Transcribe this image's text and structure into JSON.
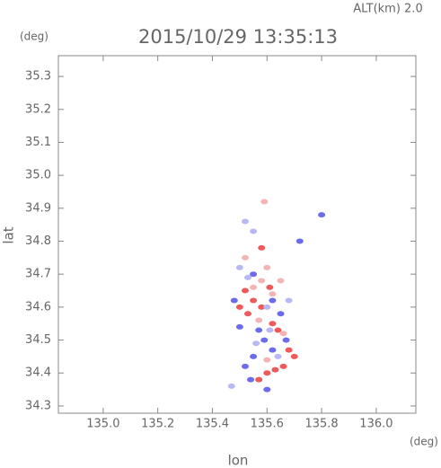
{
  "chart_data": {
    "type": "scatter",
    "title": "2015/10/29 13:35:13",
    "subtitle": "ALT(km) 2.0",
    "y_unit": "(deg)",
    "x_unit": "(deg)",
    "xlabel": "lon",
    "ylabel": "lat",
    "xlim": [
      134.836,
      136.145
    ],
    "ylim": [
      34.278,
      35.363
    ],
    "xticks": [
      {
        "value": 135.0,
        "label": "135.0"
      },
      135.2,
      135.4,
      135.6,
      135.8,
      {
        "value": 136.0,
        "label": "136.0"
      }
    ],
    "yticks": [
      34.3,
      34.4,
      34.5,
      34.6,
      34.7,
      34.8,
      34.9,
      {
        "value": 35.0,
        "label": "35.0"
      },
      35.1,
      35.2,
      35.3
    ],
    "series": [
      {
        "color": "#ee5a5a",
        "x": [
          135.55,
          135.58,
          135.53,
          135.62,
          135.68,
          135.66,
          135.6,
          135.57,
          135.52,
          135.61,
          135.58,
          135.64,
          135.5,
          135.7,
          135.63
        ],
        "y": [
          34.62,
          34.6,
          34.58,
          34.55,
          34.47,
          34.42,
          34.4,
          34.38,
          34.65,
          34.66,
          34.78,
          34.53,
          34.6,
          34.45,
          34.41
        ]
      },
      {
        "color": "#6b6bee",
        "x": [
          135.59,
          135.55,
          135.52,
          135.62,
          135.57,
          135.65,
          135.5,
          135.6,
          135.72,
          135.8,
          135.55,
          135.48,
          135.67,
          135.54,
          135.62
        ],
        "y": [
          34.5,
          34.45,
          34.42,
          34.47,
          34.53,
          34.58,
          34.54,
          34.35,
          34.8,
          34.88,
          34.7,
          34.62,
          34.5,
          34.38,
          34.62
        ]
      },
      {
        "color": "#f4b4b4",
        "x": [
          135.58,
          135.55,
          135.62,
          135.6,
          135.52,
          135.65,
          135.57,
          135.6,
          135.59,
          135.66
        ],
        "y": [
          34.68,
          34.66,
          34.64,
          34.72,
          34.75,
          34.68,
          34.56,
          34.44,
          34.92,
          34.52
        ]
      },
      {
        "color": "#b8b8f4",
        "x": [
          135.53,
          135.6,
          135.56,
          135.64,
          135.5,
          135.55,
          135.68,
          135.61,
          135.47,
          135.52
        ],
        "y": [
          34.69,
          34.6,
          34.49,
          34.45,
          34.72,
          34.83,
          34.62,
          34.53,
          34.36,
          34.86
        ]
      }
    ]
  }
}
